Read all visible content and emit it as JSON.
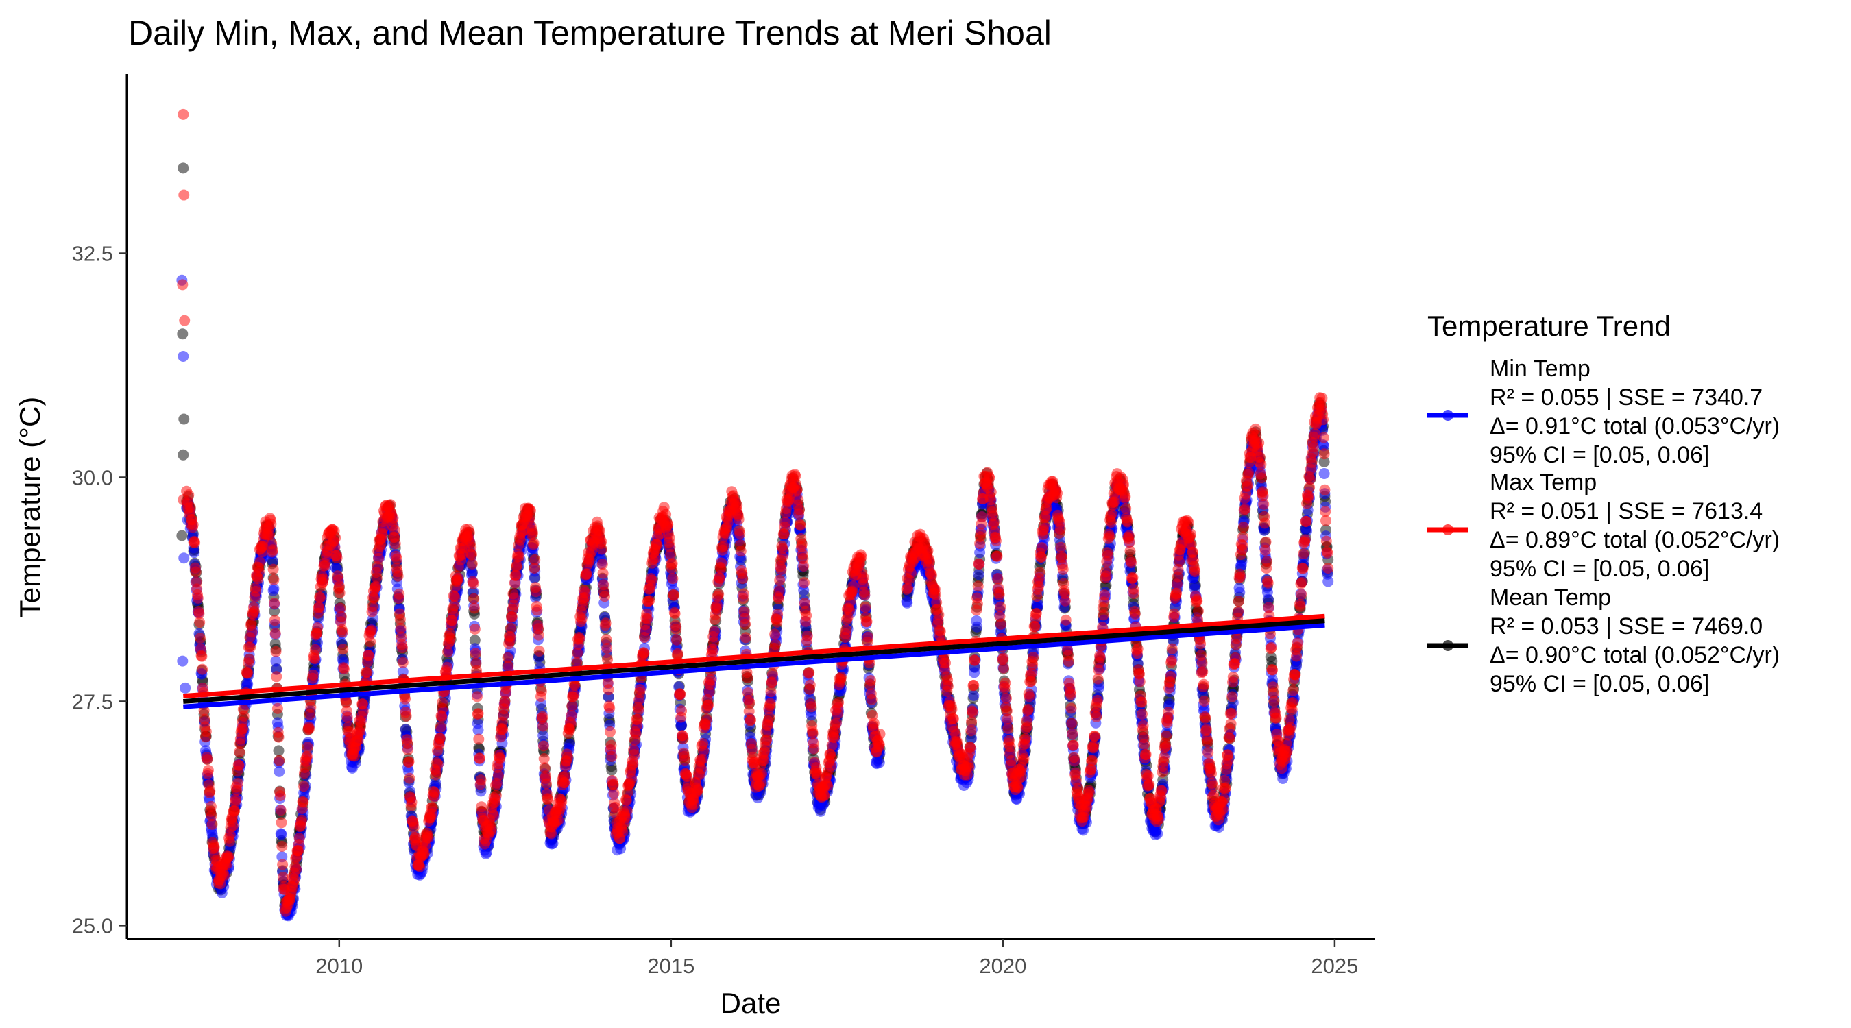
{
  "chart_data": {
    "type": "scatter",
    "title": "Daily Min, Max, and Mean Temperature Trends at Meri Shoal",
    "xlabel": "Date",
    "ylabel": "Temperature (°C)",
    "xlim": [
      2006.8,
      2025.6
    ],
    "ylim": [
      24.85,
      34.5
    ],
    "x_ticks": [
      2010,
      2015,
      2020,
      2025
    ],
    "y_ticks": [
      25.0,
      27.5,
      30.0,
      32.5
    ],
    "y_tick_labels": [
      "25.0",
      "27.5",
      "30.0",
      "32.5"
    ],
    "grid": false,
    "legend": {
      "title": "Temperature Trend",
      "position": "right"
    },
    "series": [
      {
        "name": "Min Temp",
        "color": "#0000ff",
        "stats": [
          "R² = 0.055 | SSE = 7340.7",
          "Δ= 0.91°C total (0.053°C/yr)",
          "95% CI = [0.05, 0.06]"
        ],
        "trend": {
          "x": [
            2007.65,
            2024.85
          ],
          "y": [
            27.44,
            28.35
          ]
        },
        "outliers": {
          "x": [
            2007.63,
            2007.65,
            2007.66,
            2007.64,
            2007.68
          ],
          "y": [
            32.2,
            31.35,
            29.1,
            27.95,
            27.65
          ]
        }
      },
      {
        "name": "Max Temp",
        "color": "#ff0000",
        "stats": [
          "R² = 0.051 | SSE = 7613.4",
          "Δ= 0.89°C total (0.052°C/yr)",
          "95% CI = [0.05, 0.06]"
        ],
        "trend": {
          "x": [
            2007.65,
            2024.85
          ],
          "y": [
            27.56,
            28.45
          ]
        },
        "outliers": {
          "x": [
            2007.65,
            2007.66,
            2007.64,
            2007.67,
            2007.65
          ],
          "y": [
            34.05,
            33.15,
            32.15,
            31.75,
            29.75
          ]
        }
      },
      {
        "name": "Mean Temp",
        "color": "#000000",
        "stats": [
          "R² = 0.053 | SSE = 7469.0",
          "Δ= 0.90°C total (0.052°C/yr)",
          "95% CI = [0.05, 0.06]"
        ],
        "trend": {
          "x": [
            2007.65,
            2024.85
          ],
          "y": [
            27.5,
            28.4
          ]
        },
        "outliers": {
          "x": [
            2007.65,
            2007.64,
            2007.66,
            2007.65,
            2007.63
          ],
          "y": [
            33.45,
            31.6,
            30.65,
            30.25,
            29.35
          ]
        }
      }
    ],
    "seasonal_envelope": {
      "comment_free": true,
      "peaks": [
        {
          "x": 2007.7,
          "y": 29.7
        },
        {
          "x": 2008.95,
          "y": 29.4
        },
        {
          "x": 2009.9,
          "y": 29.3
        },
        {
          "x": 2010.75,
          "y": 29.6
        },
        {
          "x": 2011.95,
          "y": 29.3
        },
        {
          "x": 2012.85,
          "y": 29.55
        },
        {
          "x": 2013.9,
          "y": 29.35
        },
        {
          "x": 2014.9,
          "y": 29.5
        },
        {
          "x": 2015.95,
          "y": 29.7
        },
        {
          "x": 2016.85,
          "y": 29.9
        },
        {
          "x": 2017.85,
          "y": 29.0
        },
        {
          "x": 2018.75,
          "y": 29.2
        },
        {
          "x": 2019.75,
          "y": 29.95
        },
        {
          "x": 2020.75,
          "y": 29.85
        },
        {
          "x": 2021.75,
          "y": 29.9
        },
        {
          "x": 2022.75,
          "y": 29.4
        },
        {
          "x": 2023.8,
          "y": 30.4
        },
        {
          "x": 2024.8,
          "y": 30.75
        }
      ],
      "troughs": [
        {
          "x": 2008.2,
          "y": 25.5
        },
        {
          "x": 2009.2,
          "y": 25.2
        },
        {
          "x": 2010.2,
          "y": 26.9
        },
        {
          "x": 2011.2,
          "y": 25.7
        },
        {
          "x": 2012.2,
          "y": 25.95
        },
        {
          "x": 2013.2,
          "y": 26.05
        },
        {
          "x": 2014.2,
          "y": 26.0
        },
        {
          "x": 2015.3,
          "y": 26.35
        },
        {
          "x": 2016.3,
          "y": 26.55
        },
        {
          "x": 2017.25,
          "y": 26.4
        },
        {
          "x": 2018.1,
          "y": 26.95
        },
        {
          "x": 2019.45,
          "y": 26.7
        },
        {
          "x": 2020.2,
          "y": 26.55
        },
        {
          "x": 2021.2,
          "y": 26.2
        },
        {
          "x": 2022.3,
          "y": 26.15
        },
        {
          "x": 2023.25,
          "y": 26.2
        },
        {
          "x": 2024.2,
          "y": 26.8
        }
      ],
      "gap": {
        "from": 2018.15,
        "to": 2018.55
      },
      "end": {
        "x": 2024.9,
        "y": 29.0
      }
    }
  }
}
